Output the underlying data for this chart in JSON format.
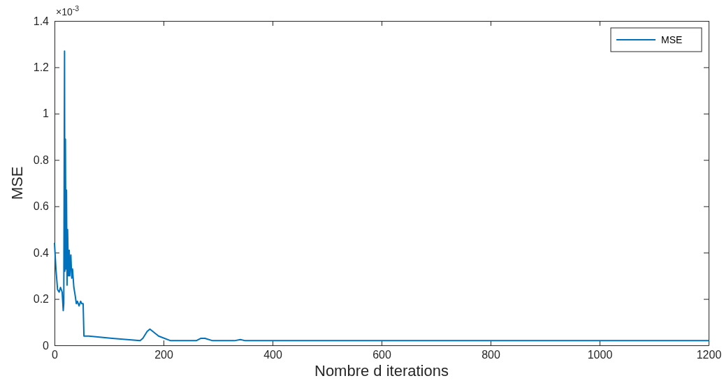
{
  "chart_data": {
    "type": "line",
    "xlabel": "Nombre d iterations",
    "ylabel": "MSE",
    "annotations": [
      "×10$^{-3}$"
    ],
    "xlim": [
      0,
      1200
    ],
    "xticks": [
      0,
      200,
      400,
      600,
      800,
      1000,
      1200
    ],
    "ylim": [
      0,
      1.4
    ],
    "yticks": [
      0,
      0.2,
      0.4,
      0.6,
      0.8,
      1,
      1.2,
      1.4
    ],
    "legend": "top right",
    "series": [
      {
        "name": "MSE",
        "color": "#0072bd",
        "x": [
          0,
          2.6,
          5.6,
          8.5,
          11,
          14,
          16,
          17,
          18.4,
          19,
          20,
          21,
          22,
          23,
          24,
          25.6,
          27,
          28,
          30,
          31.6,
          33,
          35.5,
          37.6,
          40,
          42,
          45,
          48,
          50,
          52.5,
          54,
          63,
          106,
          157,
          162,
          170,
          175,
          191,
          213,
          226,
          260,
          268,
          276,
          290,
          330,
          341,
          350,
          400,
          600,
          1200
        ],
        "values": [
          0.44,
          0.33,
          0.24,
          0.23,
          0.25,
          0.23,
          0.15,
          0.18,
          1.27,
          0.32,
          0.89,
          0.33,
          0.67,
          0.26,
          0.5,
          0.3,
          0.41,
          0.3,
          0.39,
          0.29,
          0.33,
          0.25,
          0.22,
          0.18,
          0.19,
          0.17,
          0.19,
          0.18,
          0.18,
          0.04,
          0.04,
          0.03,
          0.02,
          0.03,
          0.06,
          0.07,
          0.04,
          0.02,
          0.02,
          0.02,
          0.03,
          0.03,
          0.02,
          0.02,
          0.025,
          0.02,
          0.02,
          0.02,
          0.02
        ]
      }
    ]
  }
}
